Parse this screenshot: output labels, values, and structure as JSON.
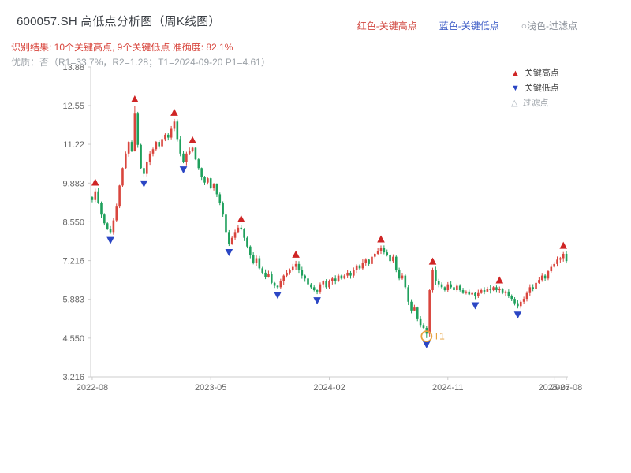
{
  "header": {
    "title": "600057.SH 高低点分析图（周K线图）",
    "legend": [
      "红色-关键高点",
      "蓝色-关键低点",
      "○浅色-过滤点"
    ],
    "result_line": "识别结果: 10个关键高点, 9个关键低点  准确度: 82.1%",
    "quality_line": "优质：否（R1=33.7%，R2=1.28；T1=2024-09-20 P1=4.61）"
  },
  "chart_legend": [
    {
      "symbol": "▲",
      "label": "关键高点"
    },
    {
      "symbol": "▼",
      "label": "关键低点"
    },
    {
      "symbol": "△",
      "label": "过滤点"
    }
  ],
  "chart_data": {
    "type": "candlestick",
    "title": "600057.SH 高低点分析图（周K线图）",
    "interval": "week",
    "start_date": "2022-08-05",
    "ylim": [
      3.216,
      13.88
    ],
    "y_ticks": [
      "13.88",
      "12.55",
      "11.22",
      "9.883",
      "8.550",
      "7.216",
      "5.883",
      "4.550",
      "3.216"
    ],
    "x_ticks": [
      {
        "label": "2022-08",
        "week": 0
      },
      {
        "label": "2023-05",
        "week": 39
      },
      {
        "label": "2024-02",
        "week": 78
      },
      {
        "label": "2024-11",
        "week": 117
      },
      {
        "label": "2025-07",
        "week": 152
      },
      {
        "label": "2025-08",
        "week": 156
      }
    ],
    "first_open": 9.4,
    "closes": [
      9.3,
      9.6,
      9.2,
      8.8,
      8.5,
      8.3,
      8.2,
      8.6,
      9.1,
      9.8,
      10.4,
      10.9,
      11.3,
      11.0,
      12.3,
      11.2,
      10.4,
      10.2,
      10.6,
      10.9,
      11.05,
      11.3,
      11.15,
      11.4,
      11.55,
      11.45,
      11.75,
      12.0,
      11.4,
      10.9,
      10.6,
      10.9,
      11.0,
      11.1,
      10.7,
      10.4,
      10.1,
      9.9,
      10.05,
      9.7,
      9.85,
      9.5,
      9.2,
      8.8,
      8.2,
      7.8,
      8.0,
      8.2,
      8.35,
      8.3,
      8.0,
      7.7,
      7.4,
      7.15,
      7.3,
      6.95,
      6.8,
      6.65,
      6.75,
      6.45,
      6.35,
      6.3,
      6.5,
      6.7,
      6.8,
      6.9,
      7.0,
      7.1,
      6.9,
      6.7,
      6.6,
      6.4,
      6.3,
      6.2,
      6.15,
      6.4,
      6.5,
      6.3,
      6.5,
      6.6,
      6.5,
      6.7,
      6.6,
      6.7,
      6.8,
      6.7,
      6.9,
      7.05,
      6.95,
      7.15,
      7.25,
      7.1,
      7.35,
      7.45,
      7.55,
      7.65,
      7.5,
      7.4,
      7.2,
      7.35,
      6.9,
      6.6,
      6.7,
      6.3,
      5.8,
      5.5,
      5.6,
      5.2,
      5.0,
      4.9,
      4.7,
      6.2,
      6.9,
      6.5,
      6.4,
      6.3,
      6.2,
      6.4,
      6.3,
      6.2,
      6.35,
      6.2,
      6.1,
      6.15,
      6.05,
      6.1,
      6.0,
      6.1,
      6.2,
      6.15,
      6.25,
      6.2,
      6.3,
      6.2,
      6.25,
      6.1,
      6.15,
      6.0,
      5.9,
      5.75,
      5.65,
      5.8,
      5.9,
      6.1,
      6.3,
      6.25,
      6.45,
      6.55,
      6.7,
      6.6,
      6.85,
      7.0,
      7.1,
      7.25,
      7.3,
      7.45,
      7.2
    ],
    "high_overrides": {
      "14": 12.55
    },
    "low_overrides": {
      "110": 4.55
    },
    "key_highs": [
      1,
      14,
      27,
      33,
      49,
      67,
      95,
      112,
      134,
      155
    ],
    "key_lows": [
      6,
      17,
      30,
      45,
      61,
      74,
      110,
      126,
      140
    ],
    "t1": {
      "week": 110,
      "price": 4.61,
      "label": "T1",
      "date": "2024-09-20"
    },
    "stats": {
      "key_high_count": 10,
      "key_low_count": 9,
      "accuracy_pct": 82.1,
      "r1_pct": 33.7,
      "r2": 1.28,
      "p1": 4.61
    },
    "colors": {
      "up": "#d9453d",
      "down": "#1fa05c",
      "high_marker": "#cf2525",
      "low_marker": "#2b46c4",
      "t1": "#e6a23c",
      "axis": "#cccccc",
      "tick_text": "#666666"
    },
    "legend_position": "top-right",
    "grid": false
  }
}
